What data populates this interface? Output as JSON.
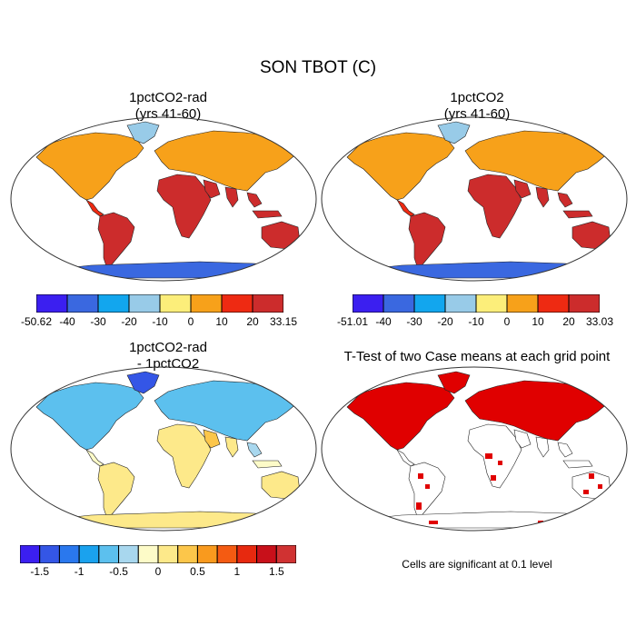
{
  "title": "SON TBOT (C)",
  "panels": [
    {
      "id": "p1",
      "title_line1": "1pctCO2-rad",
      "title_line2": "(yrs 41-60)"
    },
    {
      "id": "p2",
      "title_line1": "1pctCO2",
      "title_line2": "(yrs 41-60)"
    },
    {
      "id": "p3",
      "title_line1": "1pctCO2-rad",
      "title_line2": "- 1pctCO2"
    },
    {
      "id": "p4",
      "title_line1": "T-Test of two Case means at each grid point",
      "title_line2": ""
    }
  ],
  "colorbars": {
    "cb1": {
      "colors": [
        "#3b1ff0",
        "#3a68e0",
        "#12a6ee",
        "#98cbe8",
        "#fcee7a",
        "#f7a11a",
        "#ee2a12",
        "#cc2c2c"
      ],
      "labels": [
        "-50.62",
        "-40",
        "-30",
        "-20",
        "-10",
        "0",
        "10",
        "20",
        "33.15"
      ]
    },
    "cb2": {
      "colors": [
        "#3b1ff0",
        "#3a68e0",
        "#12a6ee",
        "#98cbe8",
        "#fcee7a",
        "#f7a11a",
        "#ee2a12",
        "#cc2c2c"
      ],
      "labels": [
        "-51.01",
        "-40",
        "-30",
        "-20",
        "-10",
        "0",
        "10",
        "20",
        "33.03"
      ]
    },
    "cb3": {
      "colors": [
        "#3b1ff0",
        "#3456e6",
        "#2a78ee",
        "#1aa2ee",
        "#5cc0ee",
        "#a8d7ee",
        "#fdfbc8",
        "#fde98a",
        "#fcc64a",
        "#f99a1e",
        "#f45b12",
        "#e7290f",
        "#c8101a",
        "#d03232"
      ],
      "labels": [
        "-1.5",
        "-1",
        "-0.5",
        "0",
        "0.5",
        "1",
        "1.5"
      ]
    }
  },
  "note": "Cells are significant at 0.1 level"
}
